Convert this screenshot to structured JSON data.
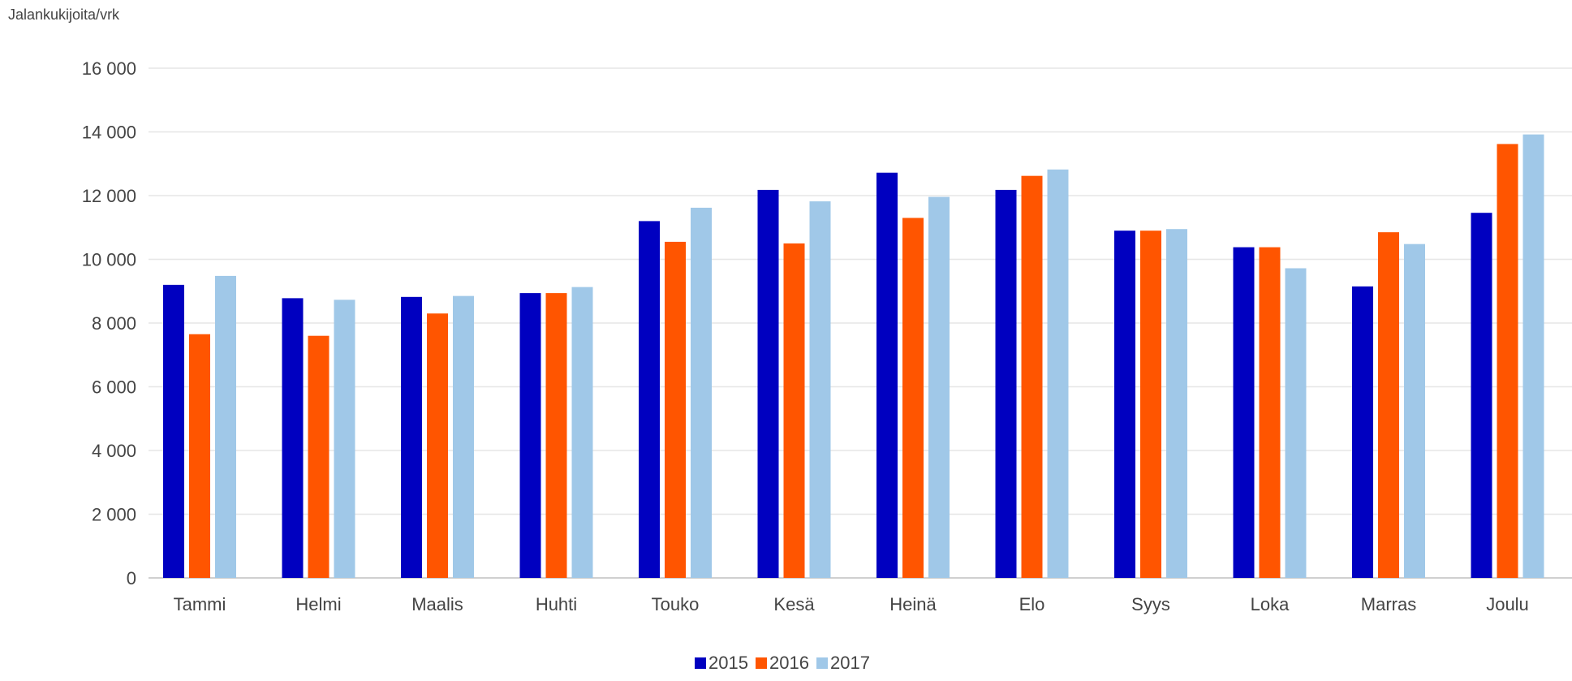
{
  "chart_data": {
    "type": "bar",
    "ylabel": "Jalankukijoita/vrk",
    "xlabel": "",
    "ylim": [
      0,
      16000
    ],
    "yticks": [
      0,
      2000,
      4000,
      6000,
      8000,
      10000,
      12000,
      14000,
      16000
    ],
    "ytick_labels": [
      "0",
      "2 000",
      "4 000",
      "6 000",
      "8 000",
      "10 000",
      "12 000",
      "14 000",
      "16 000"
    ],
    "categories": [
      "Tammi",
      "Helmi",
      "Maalis",
      "Huhti",
      "Touko",
      "Kesä",
      "Heinä",
      "Elo",
      "Syys",
      "Loka",
      "Marras",
      "Joulu"
    ],
    "series": [
      {
        "name": "2015",
        "color": "#0000c0",
        "values": [
          9200,
          8780,
          8820,
          8940,
          11200,
          12180,
          12720,
          12180,
          10900,
          10380,
          9150,
          11460
        ]
      },
      {
        "name": "2016",
        "color": "#ff5500",
        "values": [
          7650,
          7600,
          8300,
          8940,
          10550,
          10500,
          11300,
          12620,
          10900,
          10380,
          10850,
          13620
        ]
      },
      {
        "name": "2017",
        "color": "#a0c8e8",
        "values": [
          9480,
          8730,
          8850,
          9130,
          11620,
          11820,
          11960,
          12820,
          10950,
          9720,
          10480,
          13920
        ]
      }
    ],
    "grid": true,
    "legend": "bottom-center"
  }
}
